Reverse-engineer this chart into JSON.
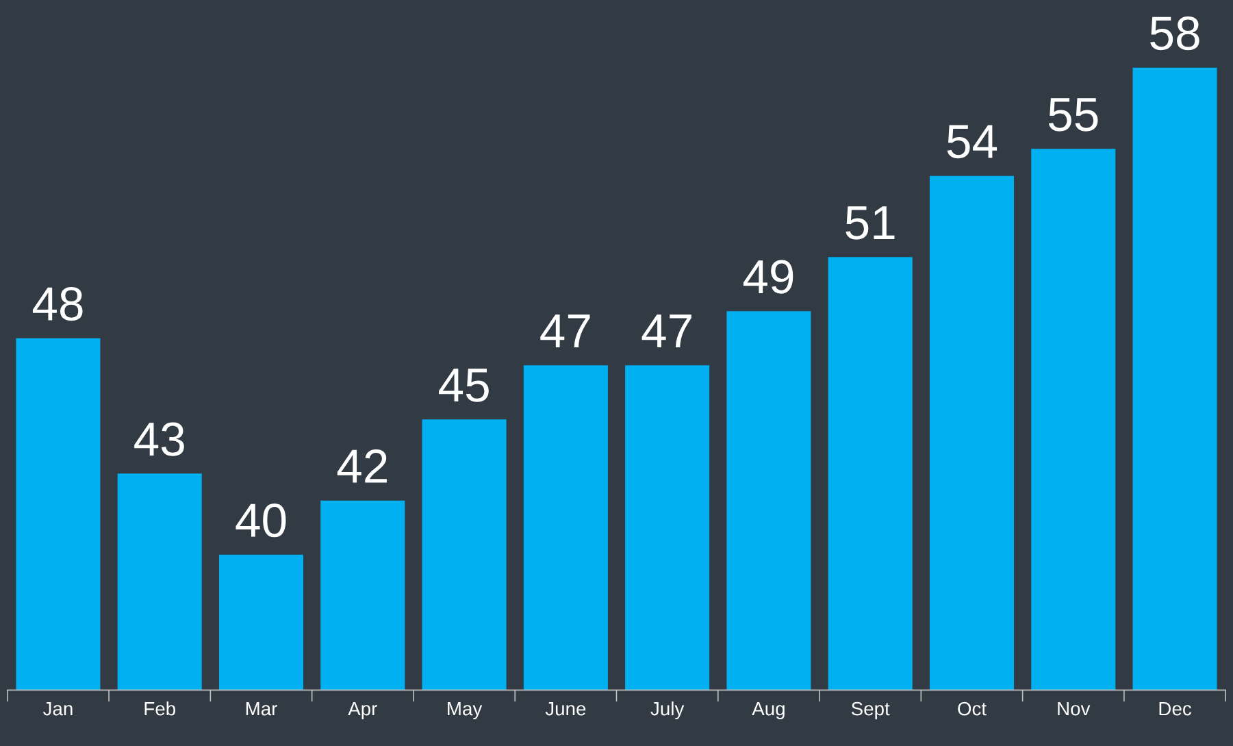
{
  "chart_data": {
    "type": "bar",
    "categories": [
      "Jan",
      "Feb",
      "Mar",
      "Apr",
      "May",
      "June",
      "July",
      "Aug",
      "Sept",
      "Oct",
      "Nov",
      "Dec"
    ],
    "values": [
      48,
      43,
      40,
      42,
      45,
      47,
      47,
      49,
      51,
      54,
      55,
      58
    ],
    "color": "#00b0f0",
    "ylim": [
      35,
      60.5
    ],
    "data_labels": true,
    "grid": false,
    "legend": false,
    "tick_labels": "x"
  }
}
